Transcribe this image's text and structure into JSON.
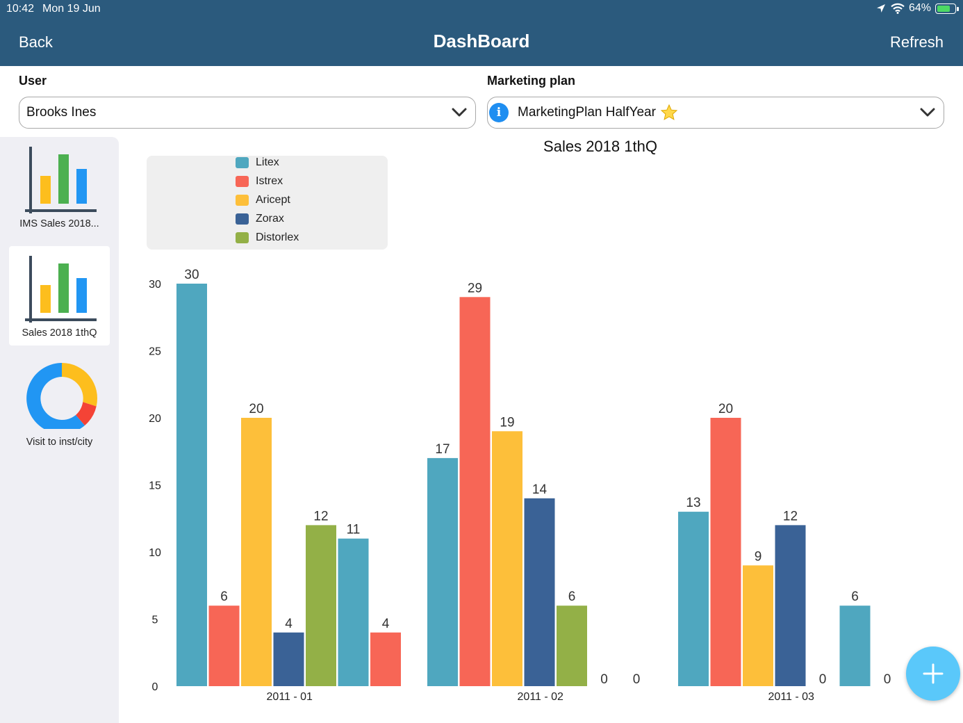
{
  "status_bar": {
    "time": "10:42",
    "date": "Mon 19 Jun",
    "battery": "64%"
  },
  "nav": {
    "back_label": "Back",
    "title": "DashBoard",
    "refresh_label": "Refresh"
  },
  "filters": {
    "user_label": "User",
    "user_value": "Brooks Ines",
    "plan_label": "Marketing plan",
    "plan_value": "MarketingPlan HalfYear"
  },
  "sidebar": {
    "items": [
      {
        "label": "IMS Sales 2018...",
        "icon": "bar-chart-icon",
        "active": false
      },
      {
        "label": "Sales 2018 1thQ",
        "icon": "bar-chart-icon",
        "active": true
      },
      {
        "label": "Visit to inst/city",
        "icon": "donut-chart-icon",
        "active": false
      }
    ]
  },
  "colors": {
    "header": "#2b5a7d",
    "Litex": "#4fa7bf",
    "Istrex": "#f76656",
    "Aricept": "#fdbf3a",
    "Zorax": "#3a6296",
    "Distorlex": "#93b047",
    "fab": "#5ac8fa"
  },
  "chart_data": {
    "type": "bar",
    "title": "Sales 2018 1thQ",
    "legend": [
      "Litex",
      "Istrex",
      "Aricept",
      "Zorax",
      "Distorlex"
    ],
    "legend_position": "top-left",
    "ylim": [
      0,
      30
    ],
    "yticks": [
      0,
      5,
      10,
      15,
      20,
      25,
      30
    ],
    "groups": [
      {
        "label": "2011 - 01",
        "bars": [
          {
            "series": "Litex",
            "value": 30
          },
          {
            "series": "Istrex",
            "value": 6
          },
          {
            "series": "Aricept",
            "value": 20
          },
          {
            "series": "Zorax",
            "value": 4
          },
          {
            "series": "Distorlex",
            "value": 12
          },
          {
            "series": "Litex",
            "value": 11
          },
          {
            "series": "Istrex",
            "value": 4
          }
        ]
      },
      {
        "label": "2011 - 02",
        "bars": [
          {
            "series": "Litex",
            "value": 17
          },
          {
            "series": "Istrex",
            "value": 29
          },
          {
            "series": "Aricept",
            "value": 19
          },
          {
            "series": "Zorax",
            "value": 14
          },
          {
            "series": "Distorlex",
            "value": 6
          },
          {
            "series": "Litex",
            "value": 0
          },
          {
            "series": "Istrex",
            "value": 0
          }
        ]
      },
      {
        "label": "2011 - 03",
        "bars": [
          {
            "series": "Litex",
            "value": 13
          },
          {
            "series": "Istrex",
            "value": 20
          },
          {
            "series": "Aricept",
            "value": 9
          },
          {
            "series": "Zorax",
            "value": 12
          },
          {
            "series": "Distorlex",
            "value": 0
          },
          {
            "series": "Litex",
            "value": 6
          },
          {
            "series": "Istrex",
            "value": 0
          }
        ]
      }
    ]
  }
}
